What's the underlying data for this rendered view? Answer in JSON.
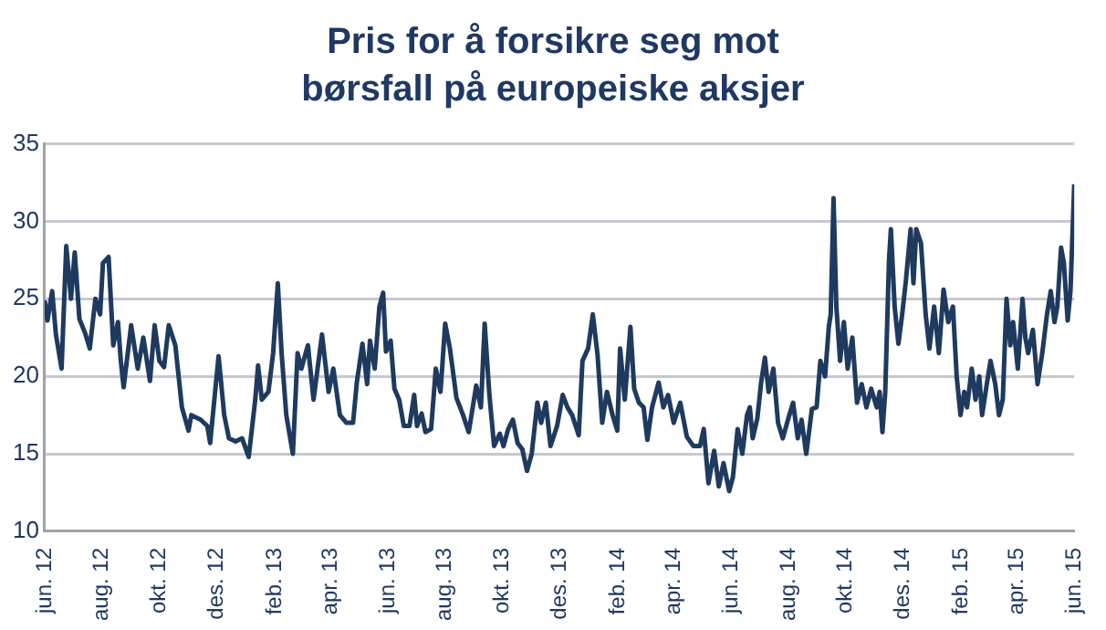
{
  "chart_data": {
    "type": "line",
    "title": "Pris for å forsikre seg mot børsfall på europeiske aksjer",
    "x": [
      "2012-06-01",
      "2012-06-04",
      "2012-06-09",
      "2012-06-13",
      "2012-06-19",
      "2012-06-24",
      "2012-06-29",
      "2012-07-03",
      "2012-07-08",
      "2012-07-14",
      "2012-07-19",
      "2012-07-25",
      "2012-07-30",
      "2012-08-02",
      "2012-08-08",
      "2012-08-13",
      "2012-08-18",
      "2012-08-21",
      "2012-08-24",
      "2012-09-01",
      "2012-09-08",
      "2012-09-14",
      "2012-09-21",
      "2012-09-26",
      "2012-10-01",
      "2012-10-06",
      "2012-10-11",
      "2012-10-18",
      "2012-10-25",
      "2012-11-01",
      "2012-11-04",
      "2012-11-14",
      "2012-11-21",
      "2012-11-24",
      "2012-12-03",
      "2012-12-09",
      "2012-12-14",
      "2012-12-21",
      "2012-12-28",
      "2013-01-04",
      "2013-01-11",
      "2013-01-14",
      "2013-01-18",
      "2013-01-25",
      "2013-01-30",
      "2013-02-04",
      "2013-02-08",
      "2013-02-13",
      "2013-02-20",
      "2013-02-25",
      "2013-03-01",
      "2013-03-08",
      "2013-03-14",
      "2013-03-23",
      "2013-03-30",
      "2013-04-04",
      "2013-04-11",
      "2013-04-18",
      "2013-04-25",
      "2013-04-29",
      "2013-05-05",
      "2013-05-10",
      "2013-05-13",
      "2013-05-18",
      "2013-05-23",
      "2013-05-27",
      "2013-05-30",
      "2013-06-04",
      "2013-06-08",
      "2013-06-13",
      "2013-06-18",
      "2013-06-24",
      "2013-06-29",
      "2013-07-02",
      "2013-07-07",
      "2013-07-11",
      "2013-07-17",
      "2013-07-22",
      "2013-07-27",
      "2013-08-01",
      "2013-08-06",
      "2013-08-13",
      "2013-08-20",
      "2013-08-26",
      "2013-09-03",
      "2013-09-08",
      "2013-09-12",
      "2013-09-17",
      "2013-09-22",
      "2013-09-28",
      "2013-10-02",
      "2013-10-07",
      "2013-10-12",
      "2013-10-17",
      "2013-10-22",
      "2013-10-27",
      "2013-11-01",
      "2013-11-07",
      "2013-11-11",
      "2013-11-16",
      "2013-11-21",
      "2013-11-28",
      "2013-12-04",
      "2013-12-09",
      "2013-12-14",
      "2013-12-21",
      "2013-12-25",
      "2013-12-31",
      "2014-01-05",
      "2014-01-10",
      "2014-01-15",
      "2014-01-20",
      "2014-01-26",
      "2014-01-31",
      "2014-02-03",
      "2014-02-08",
      "2014-02-14",
      "2014-02-18",
      "2014-02-23",
      "2014-02-28",
      "2014-03-04",
      "2014-03-09",
      "2014-03-16",
      "2014-03-21",
      "2014-03-26",
      "2014-04-01",
      "2014-04-08",
      "2014-04-15",
      "2014-04-22",
      "2014-04-29",
      "2014-05-03",
      "2014-05-08",
      "2014-05-14",
      "2014-05-19",
      "2014-05-24",
      "2014-05-30",
      "2014-06-03",
      "2014-06-08",
      "2014-06-13",
      "2014-06-18",
      "2014-06-21",
      "2014-06-24",
      "2014-06-29",
      "2014-07-03",
      "2014-07-07",
      "2014-07-11",
      "2014-07-16",
      "2014-07-21",
      "2014-07-26",
      "2014-08-01",
      "2014-08-06",
      "2014-08-11",
      "2014-08-15",
      "2014-08-20",
      "2014-08-26",
      "2014-08-31",
      "2014-09-04",
      "2014-09-09",
      "2014-09-13",
      "2014-09-15",
      "2014-09-18",
      "2014-09-21",
      "2014-09-25",
      "2014-09-29",
      "2014-10-03",
      "2014-10-08",
      "2014-10-13",
      "2014-10-18",
      "2014-10-23",
      "2014-10-28",
      "2014-11-03",
      "2014-11-06",
      "2014-11-09",
      "2014-11-12",
      "2014-11-16",
      "2014-11-18",
      "2014-11-22",
      "2014-11-26",
      "2014-11-30",
      "2014-12-04",
      "2014-12-09",
      "2014-12-12",
      "2014-12-15",
      "2014-12-20",
      "2014-12-25",
      "2014-12-29",
      "2015-01-03",
      "2015-01-08",
      "2015-01-13",
      "2015-01-18",
      "2015-01-23",
      "2015-01-27",
      "2015-01-31",
      "2015-02-04",
      "2015-02-07",
      "2015-02-12",
      "2015-02-16",
      "2015-02-20",
      "2015-02-23",
      "2015-02-28",
      "2015-03-04",
      "2015-03-09",
      "2015-03-13",
      "2015-03-17",
      "2015-03-21",
      "2015-03-25",
      "2015-03-28",
      "2015-04-02",
      "2015-04-07",
      "2015-04-10",
      "2015-04-13",
      "2015-04-18",
      "2015-04-23",
      "2015-04-28",
      "2015-05-03",
      "2015-05-07",
      "2015-05-11",
      "2015-05-14",
      "2015-05-18",
      "2015-05-21",
      "2015-05-25",
      "2015-05-28",
      "2015-06-01"
    ],
    "series": [
      {
        "color": "#1f3a5f",
        "values": [
          24.9,
          23.6,
          25.5,
          22.7,
          20.5,
          28.4,
          25,
          28,
          23.7,
          22.8,
          21.8,
          25,
          24,
          27.3,
          27.7,
          22,
          23.5,
          21,
          19.3,
          23.3,
          20.5,
          22.5,
          19.7,
          23.3,
          21,
          20.6,
          23.3,
          22,
          18,
          16.5,
          17.5,
          17.2,
          16.8,
          15.7,
          21.3,
          17.5,
          16,
          15.8,
          16,
          14.8,
          18.5,
          20.7,
          18.5,
          19,
          21.5,
          26,
          21.5,
          17.5,
          15,
          21.5,
          20.5,
          22,
          18.5,
          22.7,
          19,
          20.5,
          17.5,
          17,
          17,
          19.6,
          22.1,
          19.5,
          22.3,
          20.5,
          24.5,
          25.4,
          21.6,
          22.3,
          19.2,
          18.5,
          16.8,
          16.8,
          18.8,
          16.8,
          17.6,
          16.4,
          16.6,
          20.5,
          19,
          23.4,
          21.8,
          18.6,
          17.5,
          16.4,
          19.4,
          18,
          23.4,
          18.8,
          15.5,
          16.3,
          15.5,
          16.6,
          17.2,
          15.7,
          15.3,
          13.9,
          15,
          18.3,
          17,
          18.3,
          15.5,
          16.8,
          18.8,
          18,
          17.5,
          16.2,
          21,
          21.8,
          24,
          21.4,
          17,
          19,
          17.5,
          16.5,
          21.8,
          18.5,
          23.2,
          19.2,
          18.3,
          18,
          15.9,
          18,
          19.6,
          18,
          18.8,
          17,
          18.3,
          16.1,
          15.5,
          15.5,
          16.6,
          13.1,
          15.2,
          12.9,
          14.4,
          12.6,
          13.5,
          16.6,
          15,
          17.5,
          18,
          16,
          17.3,
          19.6,
          21.2,
          19,
          20.5,
          17,
          16,
          17.3,
          18.3,
          16,
          17.2,
          15,
          17.9,
          18,
          21,
          20,
          23.2,
          24,
          31.5,
          24.5,
          21,
          23.5,
          20.5,
          22.5,
          18.3,
          19.5,
          18,
          19.2,
          18,
          19,
          16.4,
          19,
          27.5,
          29.5,
          24.5,
          22.1,
          24,
          26.2,
          29.5,
          26,
          29.5,
          28.6,
          24,
          21.8,
          24.5,
          21.5,
          25.6,
          23.5,
          24.5,
          20,
          17.5,
          19,
          18,
          20.5,
          18.5,
          20,
          17.5,
          19.5,
          21,
          19.5,
          17.5,
          18.5,
          25,
          22,
          23.5,
          20.5,
          25,
          22.5,
          21.5,
          23,
          19.5,
          21.5,
          24,
          25.5,
          23.5,
          24.5,
          28.3,
          27.3,
          23.6,
          25.5,
          32.4
        ]
      }
    ],
    "xlim": [
      "2012-06-01",
      "2015-06-01"
    ],
    "xticks": [
      {
        "value": "2012-06-01",
        "label": "jun. 12"
      },
      {
        "value": "2012-08-01",
        "label": "aug. 12"
      },
      {
        "value": "2012-10-01",
        "label": "okt. 12"
      },
      {
        "value": "2012-12-01",
        "label": "des. 12"
      },
      {
        "value": "2013-02-01",
        "label": "feb. 13"
      },
      {
        "value": "2013-04-01",
        "label": "apr. 13"
      },
      {
        "value": "2013-06-01",
        "label": "jun. 13"
      },
      {
        "value": "2013-08-01",
        "label": "aug. 13"
      },
      {
        "value": "2013-10-01",
        "label": "okt. 13"
      },
      {
        "value": "2013-12-01",
        "label": "des. 13"
      },
      {
        "value": "2014-02-01",
        "label": "feb. 14"
      },
      {
        "value": "2014-04-01",
        "label": "apr. 14"
      },
      {
        "value": "2014-06-01",
        "label": "jun. 14"
      },
      {
        "value": "2014-08-01",
        "label": "aug. 14"
      },
      {
        "value": "2014-10-01",
        "label": "okt. 14"
      },
      {
        "value": "2014-12-01",
        "label": "des. 14"
      },
      {
        "value": "2015-02-01",
        "label": "feb. 15"
      },
      {
        "value": "2015-04-01",
        "label": "apr. 15"
      },
      {
        "value": "2015-06-01",
        "label": "jun. 15"
      }
    ],
    "ylim": [
      10,
      35
    ],
    "yticks": [
      10,
      15,
      20,
      25,
      30,
      35
    ],
    "grid": "y",
    "legend": false,
    "marker": "none",
    "line_style": "solid"
  }
}
